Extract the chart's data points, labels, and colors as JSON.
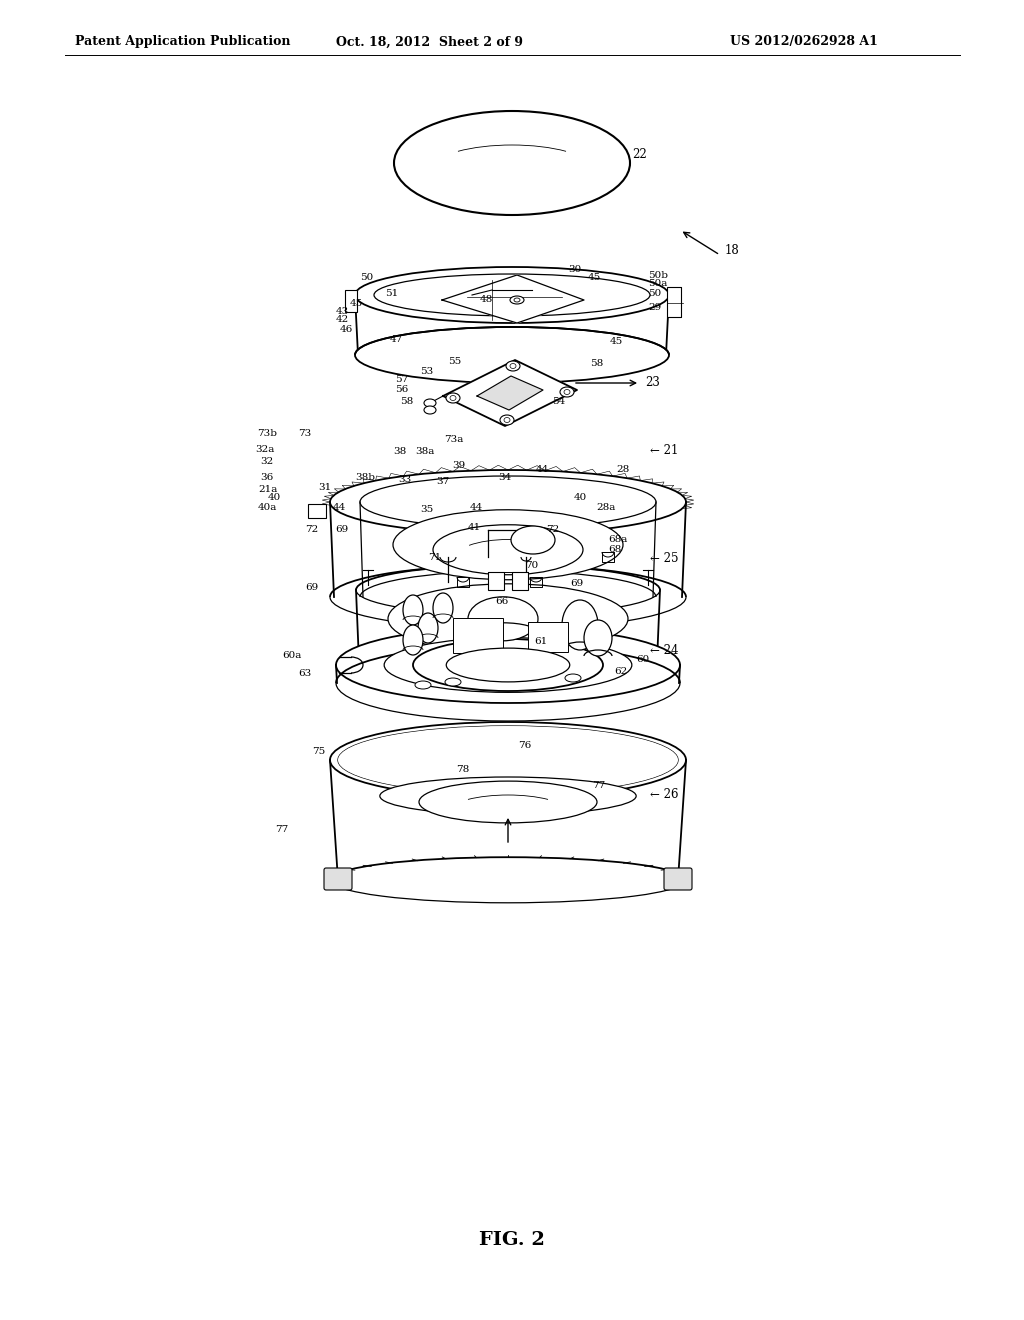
{
  "header_left": "Patent Application Publication",
  "header_center": "Oct. 18, 2012  Sheet 2 of 9",
  "header_right": "US 2012/0262928 A1",
  "bg_color": "#ffffff",
  "line_color": "#000000",
  "fig_label": "FIG. 2",
  "page_width": 1.0,
  "page_height": 1.0
}
